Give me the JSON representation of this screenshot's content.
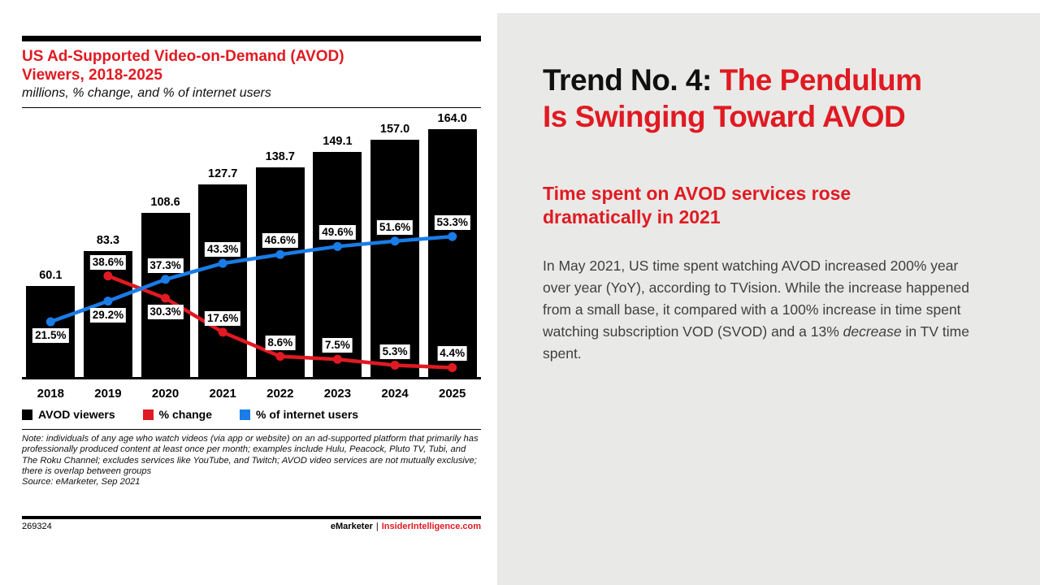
{
  "accent_red": "#e01a22",
  "line_blue": "#1a7ce6",
  "panel_gray": "#e9e9e7",
  "left_panel": {
    "title": "US Ad-Supported Video-on-Demand (AVOD) Viewers, 2018-2025",
    "subtitle": "millions, % change, and % of internet users",
    "legend": [
      {
        "label": "AVOD viewers",
        "color": "#000000"
      },
      {
        "label": "% change",
        "color": "#e01a22"
      },
      {
        "label": "% of internet users",
        "color": "#1a7ce6"
      }
    ],
    "note": "Note: individuals of any age who watch videos (via app or website) on an ad-supported platform that primarily has professionally produced content at least once per month; examples include Hulu, Peacock, Pluto TV, Tubi, and The Roku Channel; excludes services like YouTube, and Twitch; AVOD video services are not mutually exclusive; there is overlap between groups",
    "source": "Source: eMarketer, Sep 2021",
    "footer": {
      "id": "269324",
      "brand": "eMarketer",
      "sep": "|",
      "site": "InsiderIntelligence.com"
    }
  },
  "chart_data": {
    "type": "bar",
    "title": "US Ad-Supported Video-on-Demand (AVOD) Viewers, 2018-2025",
    "subtitle": "millions, % change, and % of internet users",
    "categories": [
      "2018",
      "2019",
      "2020",
      "2021",
      "2022",
      "2023",
      "2024",
      "2025"
    ],
    "grid": false,
    "legend_position": "bottom",
    "series": [
      {
        "name": "AVOD viewers",
        "type": "bar",
        "color": "#000000",
        "unit": "millions",
        "values": [
          60.1,
          83.3,
          108.6,
          127.7,
          138.7,
          149.1,
          157.0,
          164.0
        ]
      },
      {
        "name": "% change",
        "type": "line",
        "color": "#e01a22",
        "unit": "%",
        "values": [
          null,
          38.6,
          30.3,
          17.6,
          8.6,
          7.5,
          5.3,
          4.4
        ],
        "label_below_indices": [
          2
        ]
      },
      {
        "name": "% of internet users",
        "type": "line",
        "color": "#1a7ce6",
        "unit": "%",
        "values": [
          21.5,
          29.2,
          37.3,
          43.3,
          46.6,
          49.6,
          51.6,
          53.3
        ],
        "label_below_indices": [
          0,
          1
        ]
      }
    ]
  },
  "right_panel": {
    "title_black": "Trend No. 4: ",
    "title_red": "The Pendulum Is Swinging Toward AVOD",
    "subhead": "Time spent on AVOD services rose dramatically in 2021",
    "body_part1": "In May 2021, US time spent watching AVOD increased 200% year over year (YoY), according to TVision. While the increase happened from a small base, it compared with a 100% increase in time spent watching subscription VOD (SVOD) and a 13% ",
    "body_italic": "decrease",
    "body_part2": " in TV time spent."
  }
}
